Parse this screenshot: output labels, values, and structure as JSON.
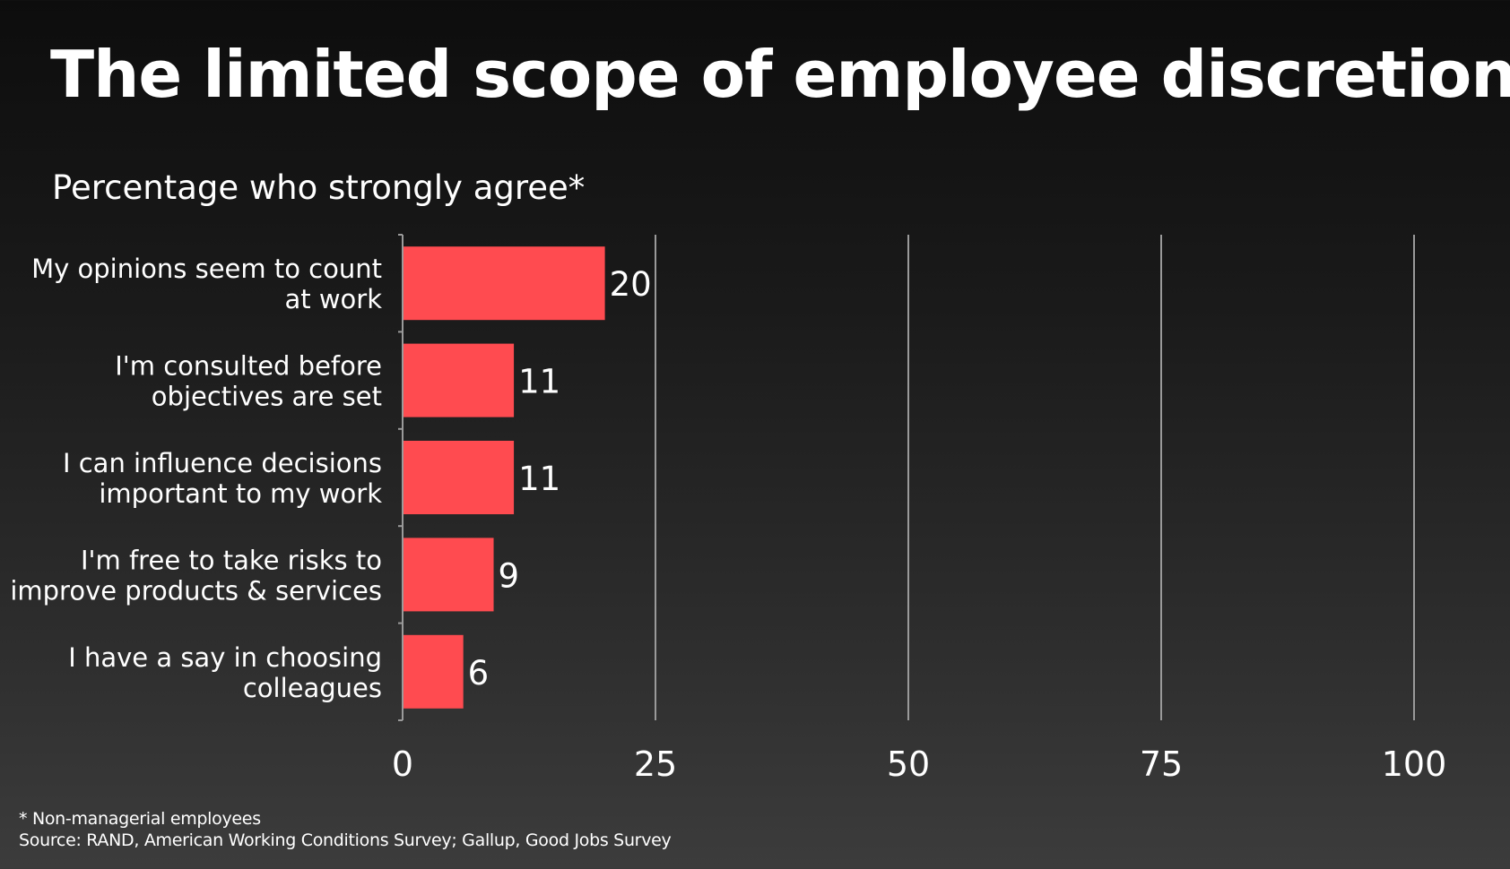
{
  "title": "The limited scope of employee discretion",
  "subtitle": "Percentage who strongly agree*",
  "footnote": "* Non-managerial employees",
  "source": "Source: RAND, American Working Conditions Survey; Gallup, Good Jobs Survey",
  "colors": {
    "bar": "#ff4b50",
    "grid": "#9a9a9a",
    "text": "#ffffff"
  },
  "chart_data": {
    "type": "bar",
    "orientation": "horizontal",
    "categories": [
      [
        "My opinions seem to count",
        "at work"
      ],
      [
        "I'm consulted before",
        "objectives are set"
      ],
      [
        "I can influence decisions",
        "important to my work"
      ],
      [
        "I'm free to take risks to",
        "improve products & services"
      ],
      [
        "I have a say in choosing",
        "colleagues"
      ]
    ],
    "values": [
      20,
      11,
      11,
      9,
      6
    ],
    "xlim": [
      0,
      100
    ],
    "xticks": [
      0,
      25,
      50,
      75,
      100
    ],
    "grid": true,
    "data_labels": true
  }
}
